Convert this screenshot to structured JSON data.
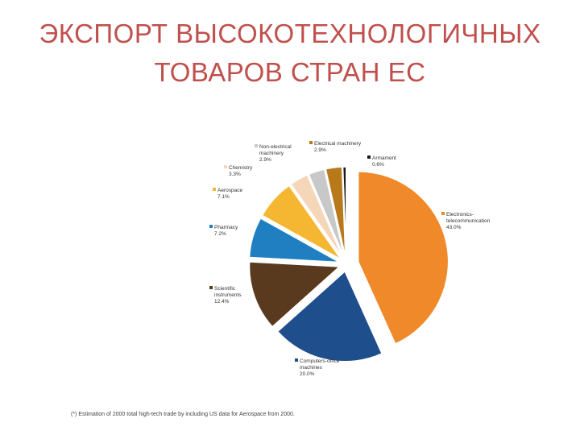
{
  "page": {
    "title_line1": "ЭКСПОРТ ВЫСОКОТЕХНОЛОГИЧНЫХ",
    "title_line2": "ТОВАРОВ СТРАН ЕС",
    "title_color": "#c0504d",
    "footnote": "(*) Estimation of 2000 total high-tech trade by including US data for Aerospace from 2000."
  },
  "chart_data": {
    "type": "pie",
    "title": "",
    "slices": [
      {
        "name": "Electronics-telecommunication",
        "label_lines": [
          "Electronics-",
          "telecommunication"
        ],
        "value": 43.0,
        "value_label": "43.0%",
        "color": "#f0892a"
      },
      {
        "name": "Computers-office machines",
        "label_lines": [
          "Computers-office",
          "machines"
        ],
        "value": 20.0,
        "value_label": "20.0%",
        "color": "#1f4e8c"
      },
      {
        "name": "Scientific instruments",
        "label_lines": [
          "Scientific",
          "instruments"
        ],
        "value": 12.4,
        "value_label": "12.4%",
        "color": "#5a3a1e"
      },
      {
        "name": "Pharmacy",
        "label_lines": [
          "Pharmacy"
        ],
        "value": 7.2,
        "value_label": "7.2%",
        "color": "#1f7fc0"
      },
      {
        "name": "Aerospace",
        "label_lines": [
          "Aerospace"
        ],
        "value": 7.1,
        "value_label": "7.1%",
        "color": "#f5b631"
      },
      {
        "name": "Chemistry",
        "label_lines": [
          "Chemistry"
        ],
        "value": 3.3,
        "value_label": "3.3%",
        "color": "#f6d6b8"
      },
      {
        "name": "Non-electrical machinery",
        "label_lines": [
          "Non-electrical",
          "machinery"
        ],
        "value": 2.9,
        "value_label": "2.9%",
        "color": "#c8c8c8"
      },
      {
        "name": "Electrical machinery",
        "label_lines": [
          "Electrical machinery"
        ],
        "value": 2.9,
        "value_label": "2.9%",
        "color": "#b8791b"
      },
      {
        "name": "Armament",
        "label_lines": [
          "Armament"
        ],
        "value": 0.6,
        "value_label": "0.6%",
        "color": "#1a1a1a"
      }
    ],
    "legend": "labels beside slices"
  }
}
